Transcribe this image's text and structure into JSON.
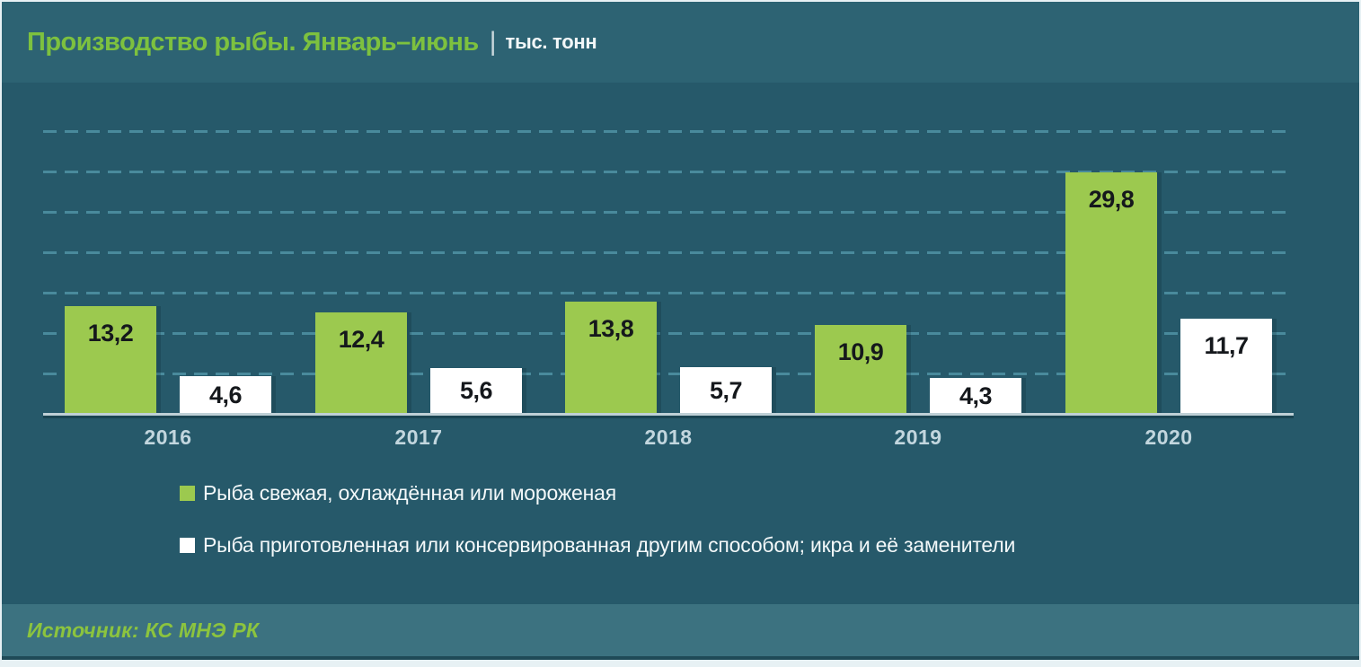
{
  "header": {
    "title": "Производство рыбы. Январь–июнь",
    "separator": "|",
    "unit": "тыс. тонн"
  },
  "chart_data": {
    "type": "bar",
    "title": "Производство рыбы. Январь–июнь",
    "unit": "тыс. тонн",
    "categories": [
      "2016",
      "2017",
      "2018",
      "2019",
      "2020"
    ],
    "series": [
      {
        "name": "Рыба свежая, охлаждённая или мороженая",
        "color": "#9cc94f",
        "values": [
          13.2,
          12.4,
          13.8,
          10.9,
          29.8
        ],
        "labels": [
          "13,2",
          "12,4",
          "13,8",
          "10,9",
          "29,8"
        ]
      },
      {
        "name": "Рыба приготовленная или консервированная другим способом; икра и её заменители",
        "color": "#ffffff",
        "values": [
          4.6,
          5.6,
          5.7,
          4.3,
          11.7
        ],
        "labels": [
          "4,6",
          "5,6",
          "5,7",
          "4,3",
          "11,7"
        ]
      }
    ],
    "ylim": [
      0,
      36
    ],
    "gridline_step": 5,
    "grid": "horizontal-dashed",
    "legend_position": "bottom-left"
  },
  "footer": {
    "source": "Источник: КС МНЭ РК"
  },
  "colors": {
    "frame": "#e7f1f4",
    "header_bg": "#2d6373",
    "chart_bg": "#26596a",
    "footer_bg": "#3c7280",
    "title_green": "#7dc13f",
    "unit_text": "#f2f7f8",
    "gridline": "#4f93a5",
    "axis_line": "#bfd0d6",
    "bar_green": "#9cc94f",
    "bar_white": "#ffffff",
    "value_label": "#15181c",
    "x_label": "#c2d6de",
    "legend_text": "#f3f8f9",
    "source_green": "#8cc43e"
  }
}
